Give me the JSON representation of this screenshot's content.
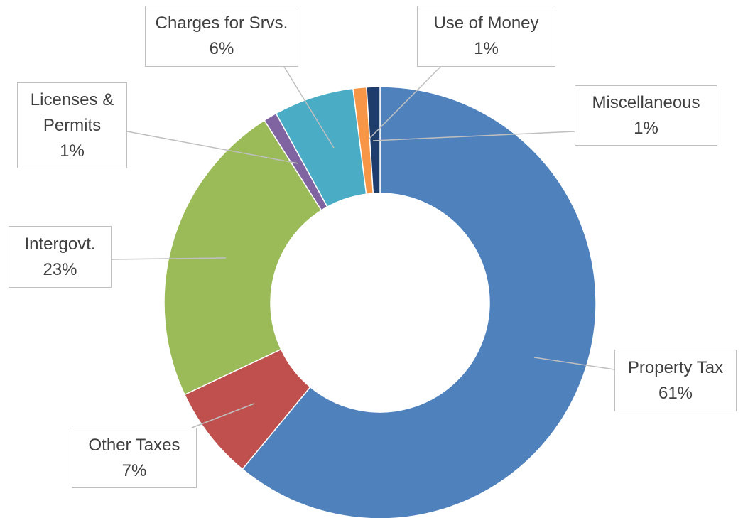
{
  "chart_data": {
    "type": "donut",
    "categories": [
      "Property Tax",
      "Other Taxes",
      "Intergovt.",
      "Licenses & Permits",
      "Charges for Srvs.",
      "Use of Money",
      "Miscellaneous"
    ],
    "values": [
      61,
      7,
      23,
      1,
      6,
      1,
      1
    ],
    "value_labels": [
      "61%",
      "7%",
      "23%",
      "1%",
      "6%",
      "1%",
      "1%"
    ],
    "colors": [
      "#4f81bd",
      "#c0504d",
      "#9bbb59",
      "#8064a2",
      "#4bacc6",
      "#f79646",
      "#1f3d6b"
    ]
  }
}
